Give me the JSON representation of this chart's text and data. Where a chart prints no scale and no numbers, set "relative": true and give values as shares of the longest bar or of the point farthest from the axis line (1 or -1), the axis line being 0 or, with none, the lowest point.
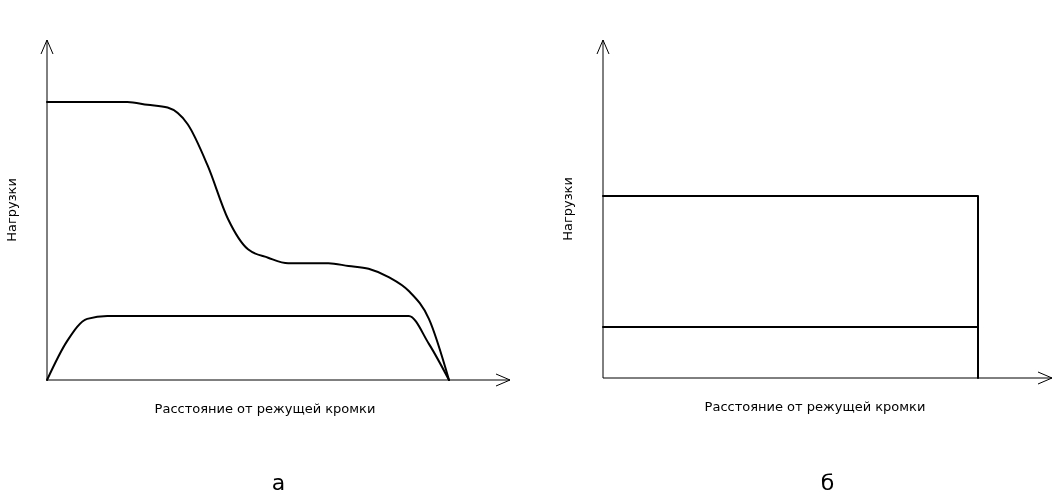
{
  "chart_data": [
    {
      "type": "line",
      "title": "а",
      "xlabel": "Расстояние от режущей кромки",
      "ylabel": "Нагрузки",
      "relative": true,
      "categories": [
        null,
        null,
        null,
        null,
        null,
        null,
        null,
        null,
        null,
        null,
        null,
        null,
        null,
        null,
        null,
        null,
        null,
        null,
        null,
        null,
        null
      ],
      "series": [
        {
          "color": "#000000",
          "values": [
            1,
            1,
            1,
            1,
            1,
            0.99,
            0.98,
            0.92,
            0.77,
            0.58,
            0.47,
            0.44,
            0.42,
            0.42,
            0.42,
            0.41,
            0.4,
            0.37,
            0.32,
            0.22,
            0
          ]
        },
        {
          "color": "#000000",
          "values": [
            0,
            0.14,
            0.22,
            0.23,
            0.23,
            0.23,
            0.23,
            0.23,
            0.23,
            0.23,
            0.23,
            0.23,
            0.23,
            0.23,
            0.23,
            0.23,
            0.23,
            0.23,
            0.23,
            0.13,
            0
          ]
        }
      ]
    },
    {
      "type": "line",
      "title": "б",
      "xlabel": "Расстояние от режущей кромки",
      "ylabel": "Нагрузки",
      "relative": true,
      "categories": [
        null,
        null,
        null,
        null,
        null,
        null
      ],
      "series": [
        {
          "type": "step",
          "color": "#000000",
          "values": [
            1,
            1,
            1,
            1,
            1,
            0
          ]
        },
        {
          "color": "#000000",
          "values": [
            0.28,
            0.28,
            0.28,
            0.28,
            0.28,
            0.28
          ]
        }
      ]
    }
  ]
}
